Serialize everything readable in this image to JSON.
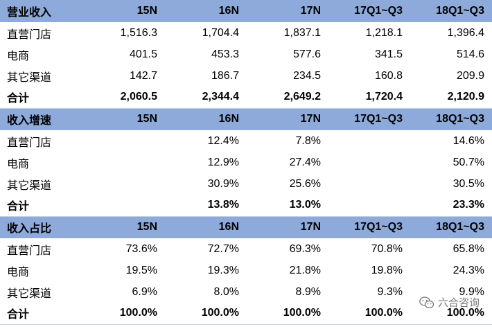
{
  "sections": [
    {
      "header": [
        "营业收入",
        "15N",
        "16N",
        "17N",
        "17Q1~Q3",
        "18Q1~Q3"
      ],
      "rows": [
        [
          "直营门店",
          "1,516.3",
          "1,704.4",
          "1,837.1",
          "1,218.1",
          "1,396.4"
        ],
        [
          "电商",
          "401.5",
          "453.3",
          "577.6",
          "341.5",
          "514.6"
        ],
        [
          "其它渠道",
          "142.7",
          "186.7",
          "234.5",
          "160.8",
          "209.9"
        ]
      ],
      "total": [
        "合计",
        "2,060.5",
        "2,344.4",
        "2,649.2",
        "1,720.4",
        "2,120.9"
      ]
    },
    {
      "header": [
        "收入增速",
        "15N",
        "16N",
        "17N",
        "17Q1~Q3",
        "18Q1~Q3"
      ],
      "rows": [
        [
          "直营门店",
          "",
          "12.4%",
          "7.8%",
          "",
          "14.6%"
        ],
        [
          "电商",
          "",
          "12.9%",
          "27.4%",
          "",
          "50.7%"
        ],
        [
          "其它渠道",
          "",
          "30.9%",
          "25.6%",
          "",
          "30.5%"
        ]
      ],
      "total": [
        "合计",
        "",
        "13.8%",
        "13.0%",
        "",
        "23.3%"
      ]
    },
    {
      "header": [
        "收入占比",
        "15N",
        "16N",
        "17N",
        "17Q1~Q3",
        "18Q1~Q3"
      ],
      "rows": [
        [
          "直营门店",
          "73.6%",
          "72.7%",
          "69.3%",
          "70.8%",
          "65.8%"
        ],
        [
          "电商",
          "19.5%",
          "19.3%",
          "21.8%",
          "19.8%",
          "24.3%"
        ],
        [
          "其它渠道",
          "6.9%",
          "8.0%",
          "8.9%",
          "9.3%",
          "9.9%"
        ]
      ],
      "total": [
        "合计",
        "100.0%",
        "100.0%",
        "100.0%",
        "100.0%",
        "100.0%"
      ]
    }
  ],
  "watermark": {
    "text": "六合咨询",
    "icon": "wechat-icon"
  },
  "colors": {
    "header_bg": "#8eaadb",
    "text": "#000000"
  }
}
